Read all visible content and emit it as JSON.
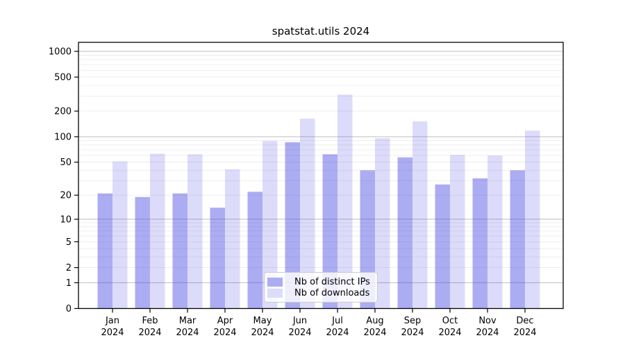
{
  "figure": {
    "title": "spatstat.utils 2024"
  },
  "chart_data": {
    "type": "bar",
    "title": "spatstat.utils 2024",
    "categories": [
      "Jan",
      "Feb",
      "Mar",
      "Apr",
      "May",
      "Jun",
      "Jul",
      "Aug",
      "Sep",
      "Oct",
      "Nov",
      "Dec"
    ],
    "year_label": "2024",
    "series": [
      {
        "name": "Nb of distinct IPs",
        "values": [
          21,
          19,
          21,
          14,
          22,
          86,
          62,
          40,
          57,
          27,
          32,
          40
        ],
        "color": "#acacf3",
        "fill_rgba": "rgba(70,70,228,0.45)"
      },
      {
        "name": "Nb of downloads",
        "values": [
          51,
          63,
          62,
          41,
          89,
          163,
          312,
          96,
          152,
          61,
          60,
          118
        ],
        "color": "#dcdcfa",
        "fill_rgba": "rgba(70,70,228,0.19)"
      }
    ],
    "xlabel": "",
    "ylabel": "",
    "y_scale": "log1p",
    "y_ticks": [
      0,
      1,
      2,
      5,
      10,
      20,
      50,
      100,
      200,
      500,
      1000
    ],
    "ylim": [
      0,
      1300
    ],
    "grid": "on",
    "grid_major_values": [
      1,
      10,
      100,
      1000
    ],
    "grid_major_color": "#bdbdbd",
    "grid_minor_color": "#ececec",
    "axis_color": "#000000",
    "legend_position": "lower center"
  }
}
